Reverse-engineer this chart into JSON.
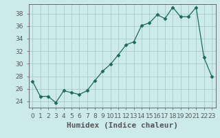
{
  "x": [
    0,
    1,
    2,
    3,
    4,
    5,
    6,
    7,
    8,
    9,
    10,
    11,
    12,
    13,
    14,
    15,
    16,
    17,
    18,
    19,
    20,
    21,
    22,
    23
  ],
  "y": [
    27.2,
    24.8,
    24.8,
    23.8,
    25.7,
    25.4,
    25.1,
    25.7,
    27.3,
    28.8,
    29.9,
    31.4,
    33.0,
    33.5,
    36.1,
    36.5,
    37.8,
    37.2,
    39.0,
    37.5,
    37.5,
    39.0,
    31.0,
    28.0
  ],
  "line_color": "#1a6b5a",
  "marker": "D",
  "marker_size": 2.5,
  "bg_color": "#cdeaea",
  "grid_color": "#aacaca",
  "axis_color": "#555555",
  "xlabel": "Humidex (Indice chaleur)",
  "ylim": [
    23,
    39.5
  ],
  "xlim": [
    -0.5,
    23.5
  ],
  "yticks": [
    24,
    26,
    28,
    30,
    32,
    34,
    36,
    38
  ],
  "xtick_labels": [
    "0",
    "1",
    "2",
    "3",
    "4",
    "5",
    "6",
    "7",
    "8",
    "9",
    "10",
    "11",
    "12",
    "13",
    "14",
    "15",
    "16",
    "17",
    "18",
    "19",
    "20",
    "21",
    "22",
    "23"
  ],
  "tick_fontsize": 6.5,
  "xlabel_fontsize": 8
}
